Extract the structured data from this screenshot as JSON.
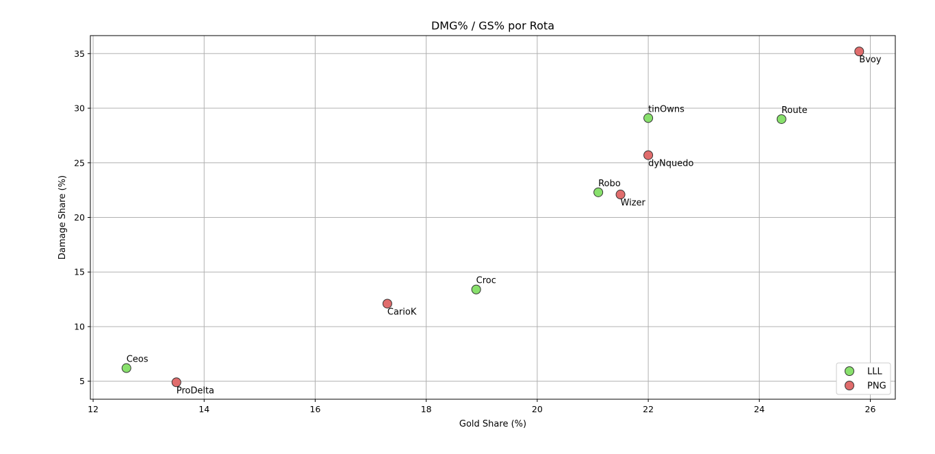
{
  "chart_data": {
    "type": "scatter",
    "title": "DMG% / GS% por Rota",
    "xlabel": "Gold Share (%)",
    "ylabel": "Damage Share (%)",
    "xlim": [
      11.95,
      26.45
    ],
    "ylim": [
      3.35,
      36.65
    ],
    "xticks": [
      12,
      14,
      16,
      18,
      20,
      22,
      24,
      26
    ],
    "yticks": [
      5,
      10,
      15,
      20,
      25,
      30,
      35
    ],
    "grid": true,
    "legend_position": "lower-right",
    "series": [
      {
        "name": "LLL",
        "color": "#88e06c",
        "label_position": "above",
        "points": [
          {
            "label": "Ceos",
            "x": 12.6,
            "y": 6.2
          },
          {
            "label": "Croc",
            "x": 18.9,
            "y": 13.4
          },
          {
            "label": "Robo",
            "x": 21.1,
            "y": 22.3
          },
          {
            "label": "tinOwns",
            "x": 22.0,
            "y": 29.1
          },
          {
            "label": "Route",
            "x": 24.4,
            "y": 29.0
          }
        ]
      },
      {
        "name": "PNG",
        "color": "#e06c6c",
        "label_position": "below",
        "points": [
          {
            "label": "ProDelta",
            "x": 13.5,
            "y": 4.9
          },
          {
            "label": "CarioK",
            "x": 17.3,
            "y": 12.1
          },
          {
            "label": "Wizer",
            "x": 21.5,
            "y": 22.1
          },
          {
            "label": "dyNquedo",
            "x": 22.0,
            "y": 25.7
          },
          {
            "label": "Bvoy",
            "x": 25.8,
            "y": 35.2
          }
        ]
      }
    ]
  }
}
